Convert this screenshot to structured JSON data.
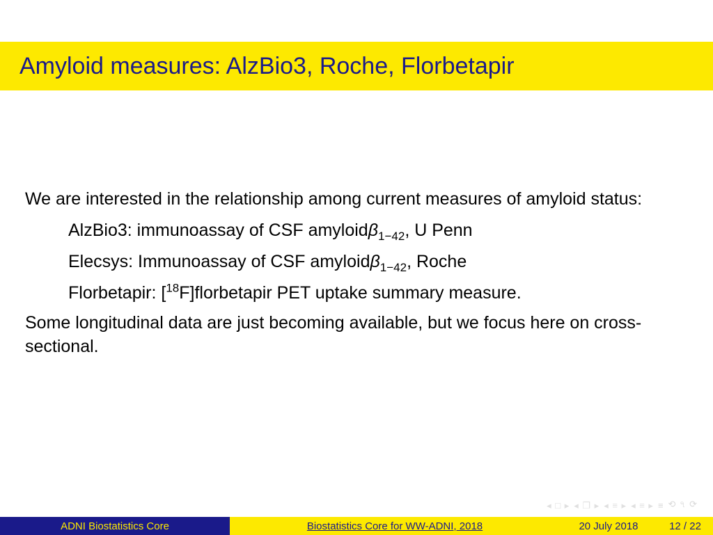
{
  "colors": {
    "yellow": "#fde900",
    "navy": "#1a1a8a",
    "headline_text": "#1a1a8a",
    "body_text": "#000000",
    "footer_blue_bg": "#1a1a8a",
    "footer_blue_text": "#fde900",
    "footer_yellow_bg": "#fde900",
    "footer_yellow_text": "#1a1a8a",
    "nav_icon": "#e0e0e0"
  },
  "title": "Amyloid measures: AlzBio3, Roche, Florbetapir",
  "intro": "We are interested in the relationship among current measures of amyloid status:",
  "items": [
    {
      "lead": "AlzBio3: immunoassay of CSF amyloid",
      "beta": "β",
      "sub": "1−42",
      "tail": ", U Penn"
    },
    {
      "lead": "Elecsys: Immunoassay of CSF amyloid",
      "beta": "β",
      "sub": "1−42",
      "tail": ", Roche"
    },
    {
      "lead": "Florbetapir: [",
      "sup": "18",
      "mid": "F]florbetapir PET uptake summary measure.",
      "tail": ""
    }
  ],
  "outro": "Some longitudinal data are just becoming available, but we focus here on cross-sectional.",
  "footer": {
    "author": "ADNI Biostatistics Core",
    "title": "Biostatistics Core for WW-ADNI, 2018",
    "date": "20 July 2018",
    "page_current": 12,
    "page_total": 22
  },
  "nav_glyphs": {
    "first": "◂ □ ▸",
    "prev": "◂ ❐ ▸",
    "up": "◂ ≡ ▸",
    "down": "◂ ≡ ▸",
    "eq": "≡",
    "undo": "⟲ ৭ ⟳"
  }
}
